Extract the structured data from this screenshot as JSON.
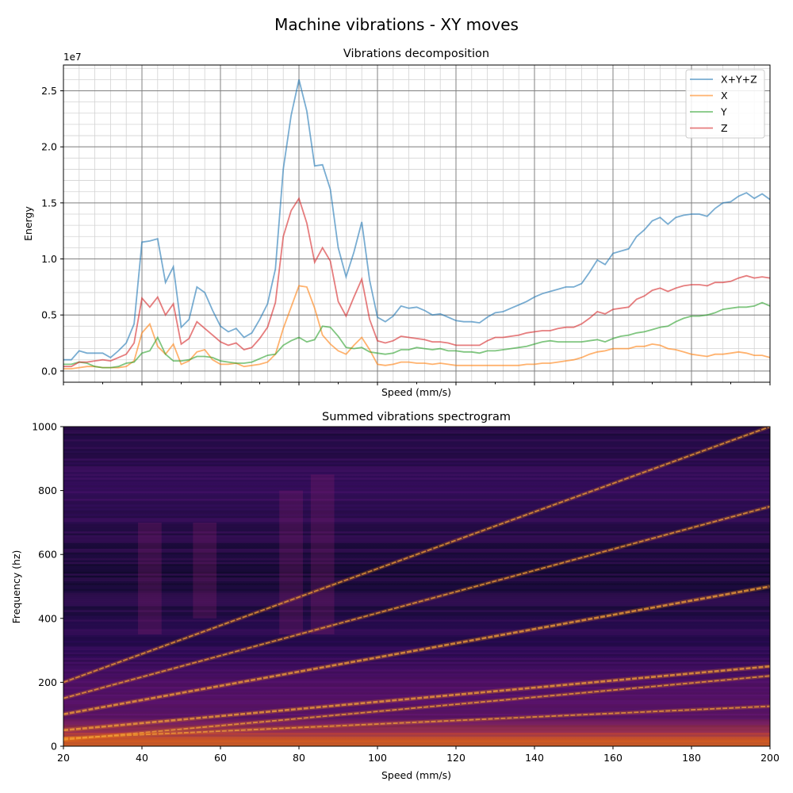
{
  "figure": {
    "suptitle": "Machine vibrations - XY moves"
  },
  "chart_data": [
    {
      "type": "line",
      "title": "Vibrations decomposition",
      "xlabel": "Speed (mm/s)",
      "ylabel": "Energy",
      "y_scale_label": "1e7",
      "xlim": [
        20,
        200
      ],
      "ylim": [
        -1.0,
        27.3
      ],
      "y_unit": 10000000,
      "y_ticks": [
        0,
        5,
        10,
        15,
        20,
        25
      ],
      "y_tick_labels": [
        "0.0",
        "0.5",
        "1.0",
        "1.5",
        "2.0",
        "2.5"
      ],
      "x_major_ticks": [
        20,
        40,
        60,
        80,
        100,
        120,
        140,
        160,
        180,
        200
      ],
      "grid": true,
      "legend_position": "top-right",
      "x": [
        20,
        22,
        24,
        26,
        28,
        30,
        32,
        34,
        36,
        38,
        40,
        42,
        44,
        46,
        48,
        50,
        52,
        54,
        56,
        58,
        60,
        62,
        64,
        66,
        68,
        70,
        72,
        74,
        76,
        78,
        80,
        82,
        84,
        86,
        88,
        90,
        92,
        94,
        96,
        98,
        100,
        102,
        104,
        106,
        108,
        110,
        112,
        114,
        116,
        118,
        120,
        122,
        124,
        126,
        128,
        130,
        132,
        134,
        136,
        138,
        140,
        142,
        144,
        146,
        148,
        150,
        152,
        154,
        156,
        158,
        160,
        162,
        164,
        166,
        168,
        170,
        172,
        174,
        176,
        178,
        180,
        182,
        184,
        186,
        188,
        190,
        192,
        194,
        196,
        198,
        200
      ],
      "series": [
        {
          "name": "X+Y+Z",
          "color": "#1f77b4",
          "values": [
            1.0,
            1.0,
            1.8,
            1.6,
            1.6,
            1.6,
            1.2,
            1.8,
            2.5,
            4.2,
            11.5,
            11.6,
            11.8,
            7.9,
            9.3,
            3.9,
            4.6,
            7.5,
            7.0,
            5.4,
            4.0,
            3.5,
            3.8,
            3.0,
            3.4,
            4.6,
            6.0,
            9.1,
            18.0,
            22.8,
            26.0,
            23.2,
            18.3,
            18.4,
            16.2,
            11.0,
            8.4,
            10.6,
            13.3,
            8.1,
            4.8,
            4.4,
            4.9,
            5.8,
            5.6,
            5.7,
            5.4,
            5.0,
            5.1,
            4.8,
            4.5,
            4.4,
            4.4,
            4.3,
            4.8,
            5.2,
            5.3,
            5.6,
            5.9,
            6.2,
            6.6,
            6.9,
            7.1,
            7.3,
            7.5,
            7.5,
            7.8,
            8.8,
            9.9,
            9.5,
            10.5,
            10.7,
            10.9,
            12.0,
            12.6,
            13.4,
            13.7,
            13.1,
            13.7,
            13.9,
            14.0,
            14.0,
            13.8,
            14.5,
            15.0,
            15.1,
            15.6,
            15.9,
            15.4,
            15.8,
            15.3
          ]
        },
        {
          "name": "X",
          "color": "#ff7f0e",
          "values": [
            0.2,
            0.2,
            0.3,
            0.4,
            0.4,
            0.3,
            0.3,
            0.3,
            0.4,
            0.9,
            3.4,
            4.2,
            2.2,
            1.5,
            2.4,
            0.6,
            0.9,
            1.7,
            1.9,
            1.0,
            0.6,
            0.6,
            0.7,
            0.4,
            0.5,
            0.6,
            0.8,
            1.5,
            3.8,
            5.7,
            7.6,
            7.5,
            5.6,
            3.2,
            2.4,
            1.8,
            1.5,
            2.3,
            3.0,
            1.9,
            0.6,
            0.5,
            0.6,
            0.8,
            0.8,
            0.7,
            0.7,
            0.6,
            0.7,
            0.6,
            0.5,
            0.5,
            0.5,
            0.5,
            0.5,
            0.5,
            0.5,
            0.5,
            0.5,
            0.6,
            0.6,
            0.7,
            0.7,
            0.8,
            0.9,
            1.0,
            1.2,
            1.5,
            1.7,
            1.8,
            2.0,
            2.0,
            2.0,
            2.2,
            2.2,
            2.4,
            2.3,
            2.0,
            1.9,
            1.7,
            1.5,
            1.4,
            1.3,
            1.5,
            1.5,
            1.6,
            1.7,
            1.6,
            1.4,
            1.4,
            1.2
          ]
        },
        {
          "name": "Y",
          "color": "#2ca02c",
          "values": [
            0.6,
            0.6,
            0.8,
            0.7,
            0.4,
            0.3,
            0.3,
            0.4,
            0.7,
            0.8,
            1.6,
            1.8,
            3.0,
            1.5,
            0.9,
            0.9,
            1.0,
            1.3,
            1.3,
            1.2,
            0.9,
            0.8,
            0.7,
            0.7,
            0.8,
            1.1,
            1.4,
            1.5,
            2.3,
            2.7,
            3.0,
            2.6,
            2.8,
            4.0,
            3.9,
            3.1,
            2.1,
            2.0,
            2.1,
            1.7,
            1.6,
            1.5,
            1.6,
            1.9,
            1.9,
            2.1,
            2.0,
            1.9,
            2.0,
            1.8,
            1.8,
            1.7,
            1.7,
            1.6,
            1.8,
            1.8,
            1.9,
            2.0,
            2.1,
            2.2,
            2.4,
            2.6,
            2.7,
            2.6,
            2.6,
            2.6,
            2.6,
            2.7,
            2.8,
            2.6,
            2.9,
            3.1,
            3.2,
            3.4,
            3.5,
            3.7,
            3.9,
            4.0,
            4.4,
            4.7,
            4.9,
            4.9,
            5.0,
            5.2,
            5.5,
            5.6,
            5.7,
            5.7,
            5.8,
            6.1,
            5.8
          ]
        },
        {
          "name": "Z",
          "color": "#d62728",
          "values": [
            0.4,
            0.4,
            0.8,
            0.8,
            0.9,
            1.0,
            0.9,
            1.2,
            1.5,
            2.5,
            6.5,
            5.7,
            6.6,
            5.0,
            6.0,
            2.4,
            2.9,
            4.4,
            3.8,
            3.2,
            2.6,
            2.3,
            2.5,
            1.9,
            2.1,
            2.9,
            3.9,
            6.1,
            12.0,
            14.3,
            15.4,
            13.2,
            9.7,
            11.0,
            9.8,
            6.2,
            4.9,
            6.6,
            8.2,
            4.6,
            2.7,
            2.5,
            2.7,
            3.1,
            3.0,
            2.9,
            2.8,
            2.6,
            2.6,
            2.5,
            2.3,
            2.3,
            2.3,
            2.3,
            2.7,
            3.0,
            3.0,
            3.1,
            3.2,
            3.4,
            3.5,
            3.6,
            3.6,
            3.8,
            3.9,
            3.9,
            4.2,
            4.7,
            5.3,
            5.1,
            5.5,
            5.6,
            5.7,
            6.4,
            6.7,
            7.2,
            7.4,
            7.1,
            7.4,
            7.6,
            7.7,
            7.7,
            7.6,
            7.9,
            7.9,
            8.0,
            8.3,
            8.5,
            8.3,
            8.4,
            8.3
          ]
        }
      ]
    },
    {
      "type": "heatmap",
      "title": "Summed vibrations spectrogram",
      "xlabel": "Speed (mm/s)",
      "ylabel": "Frequency (hz)",
      "xlim": [
        20,
        200
      ],
      "ylim": [
        0,
        1000
      ],
      "x_ticks": [
        20,
        40,
        60,
        80,
        100,
        120,
        140,
        160,
        180,
        200
      ],
      "y_ticks": [
        0,
        200,
        400,
        600,
        800,
        1000
      ],
      "colormap": "inferno",
      "ridge_lines": [
        {
          "from": [
            20,
            50
          ],
          "to": [
            200,
            250
          ]
        },
        {
          "from": [
            20,
            100
          ],
          "to": [
            200,
            500
          ]
        },
        {
          "from": [
            20,
            25
          ],
          "to": [
            200,
            125
          ]
        },
        {
          "from": [
            20,
            200
          ],
          "to": [
            200,
            1000
          ]
        },
        {
          "from": [
            20,
            150
          ],
          "to": [
            200,
            750
          ]
        },
        {
          "from": [
            20,
            20
          ],
          "to": [
            200,
            220
          ]
        }
      ]
    }
  ]
}
